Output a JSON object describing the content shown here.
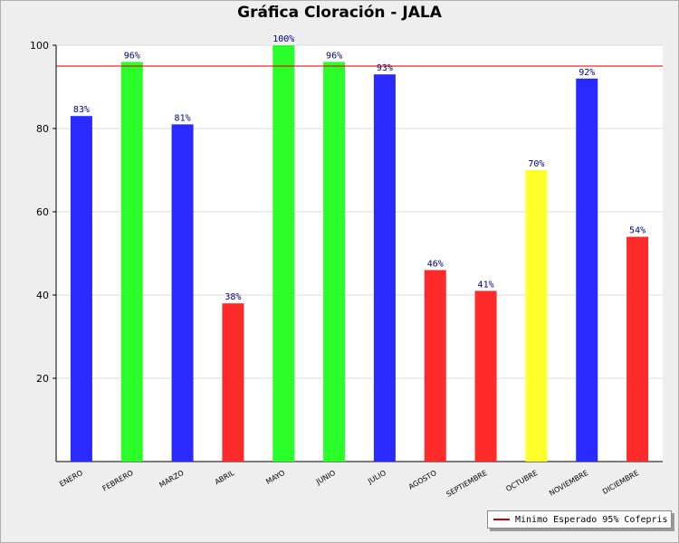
{
  "chart_data": {
    "type": "bar",
    "title": "Gráfica Cloración - JALA",
    "categories": [
      "ENERO",
      "FEBRERO",
      "MARZO",
      "ABRIL",
      "MAYO",
      "JUNIO",
      "JULIO",
      "AGOSTO",
      "SEPTIEMBRE",
      "OCTUBRE",
      "NOVIEMBRE",
      "DICIEMBRE"
    ],
    "values": [
      83,
      96,
      81,
      38,
      100,
      96,
      93,
      46,
      41,
      70,
      92,
      54
    ],
    "value_labels": [
      "83%",
      "96%",
      "81%",
      "38%",
      "100%",
      "96%",
      "93%",
      "46%",
      "41%",
      "70%",
      "92%",
      "54%"
    ],
    "bar_colors": [
      "#2a2aff",
      "#2aff2a",
      "#2a2aff",
      "#ff2a2a",
      "#2aff2a",
      "#2aff2a",
      "#2a2aff",
      "#ff2a2a",
      "#ff2a2a",
      "#ffff2a",
      "#2a2aff",
      "#ff2a2a"
    ],
    "ylim": [
      0,
      100
    ],
    "yticks": [
      20,
      40,
      60,
      80,
      100
    ],
    "reference_line": {
      "value": 95,
      "label": "Minimo Esperado 95% Cofepris",
      "color": "#cc0000"
    },
    "xlabel": "",
    "ylabel": "",
    "legend_position": "bottom-right"
  },
  "colors": {
    "label_color": "#000080",
    "grid_color": "#dddddd"
  }
}
